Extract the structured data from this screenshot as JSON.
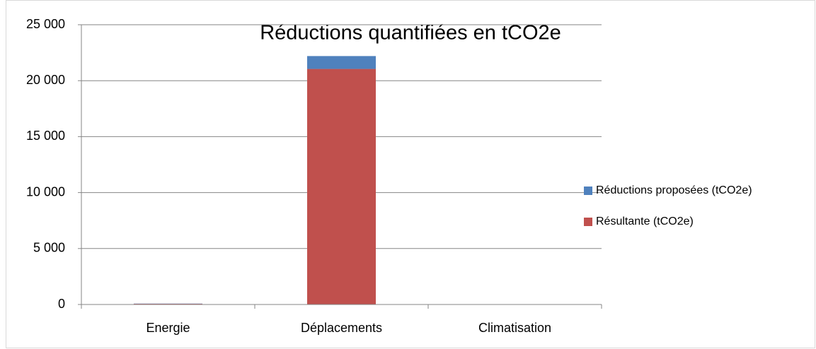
{
  "chart_data": {
    "type": "stacked_bar",
    "title": "Réductions quantifiées en tCO2e",
    "categories": [
      "Energie",
      "Déplacements",
      "Climatisation"
    ],
    "series": [
      {
        "name": "Résultante (tCO2e)",
        "color": "#c0504d",
        "values": [
          60,
          21050,
          0
        ]
      },
      {
        "name": "Réductions proposées (tCO2e)",
        "color": "#4f81bd",
        "values": [
          20,
          1150,
          0
        ]
      }
    ],
    "ylim": [
      0,
      25000
    ],
    "yticks": [
      {
        "value": 0,
        "label": "0"
      },
      {
        "value": 5000,
        "label": "5 000"
      },
      {
        "value": 10000,
        "label": "10 000"
      },
      {
        "value": 15000,
        "label": "15 000"
      },
      {
        "value": 20000,
        "label": "20 000"
      },
      {
        "value": 25000,
        "label": "25 000"
      }
    ],
    "grid": true,
    "legend": "right"
  }
}
